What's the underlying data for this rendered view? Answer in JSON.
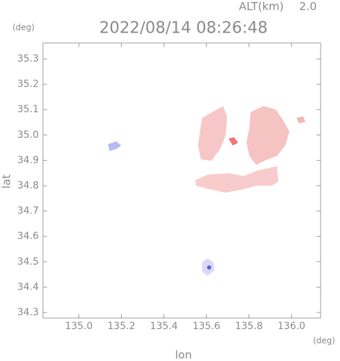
{
  "chart_data": {
    "type": "map",
    "title": "2022/08/14 08:26:48",
    "annotation": "ALT(km)",
    "annotation_value": "2.0",
    "x_unit": "(deg)",
    "y_unit": "(deg)",
    "xlabel": "lon",
    "ylabel": "lat",
    "xlim": [
      134.831,
      136.137
    ],
    "ylim": [
      34.278,
      35.363
    ],
    "xticks": [
      {
        "value": 135,
        "label": "135.0"
      },
      135.2,
      135.4,
      135.6,
      135.8,
      {
        "value": 136,
        "label": "136.0"
      }
    ],
    "yticks": [
      34.3,
      34.4,
      34.5,
      34.6,
      34.7,
      34.8,
      34.9,
      {
        "value": 35,
        "label": "35.0"
      },
      35.1,
      35.2,
      35.3
    ]
  }
}
